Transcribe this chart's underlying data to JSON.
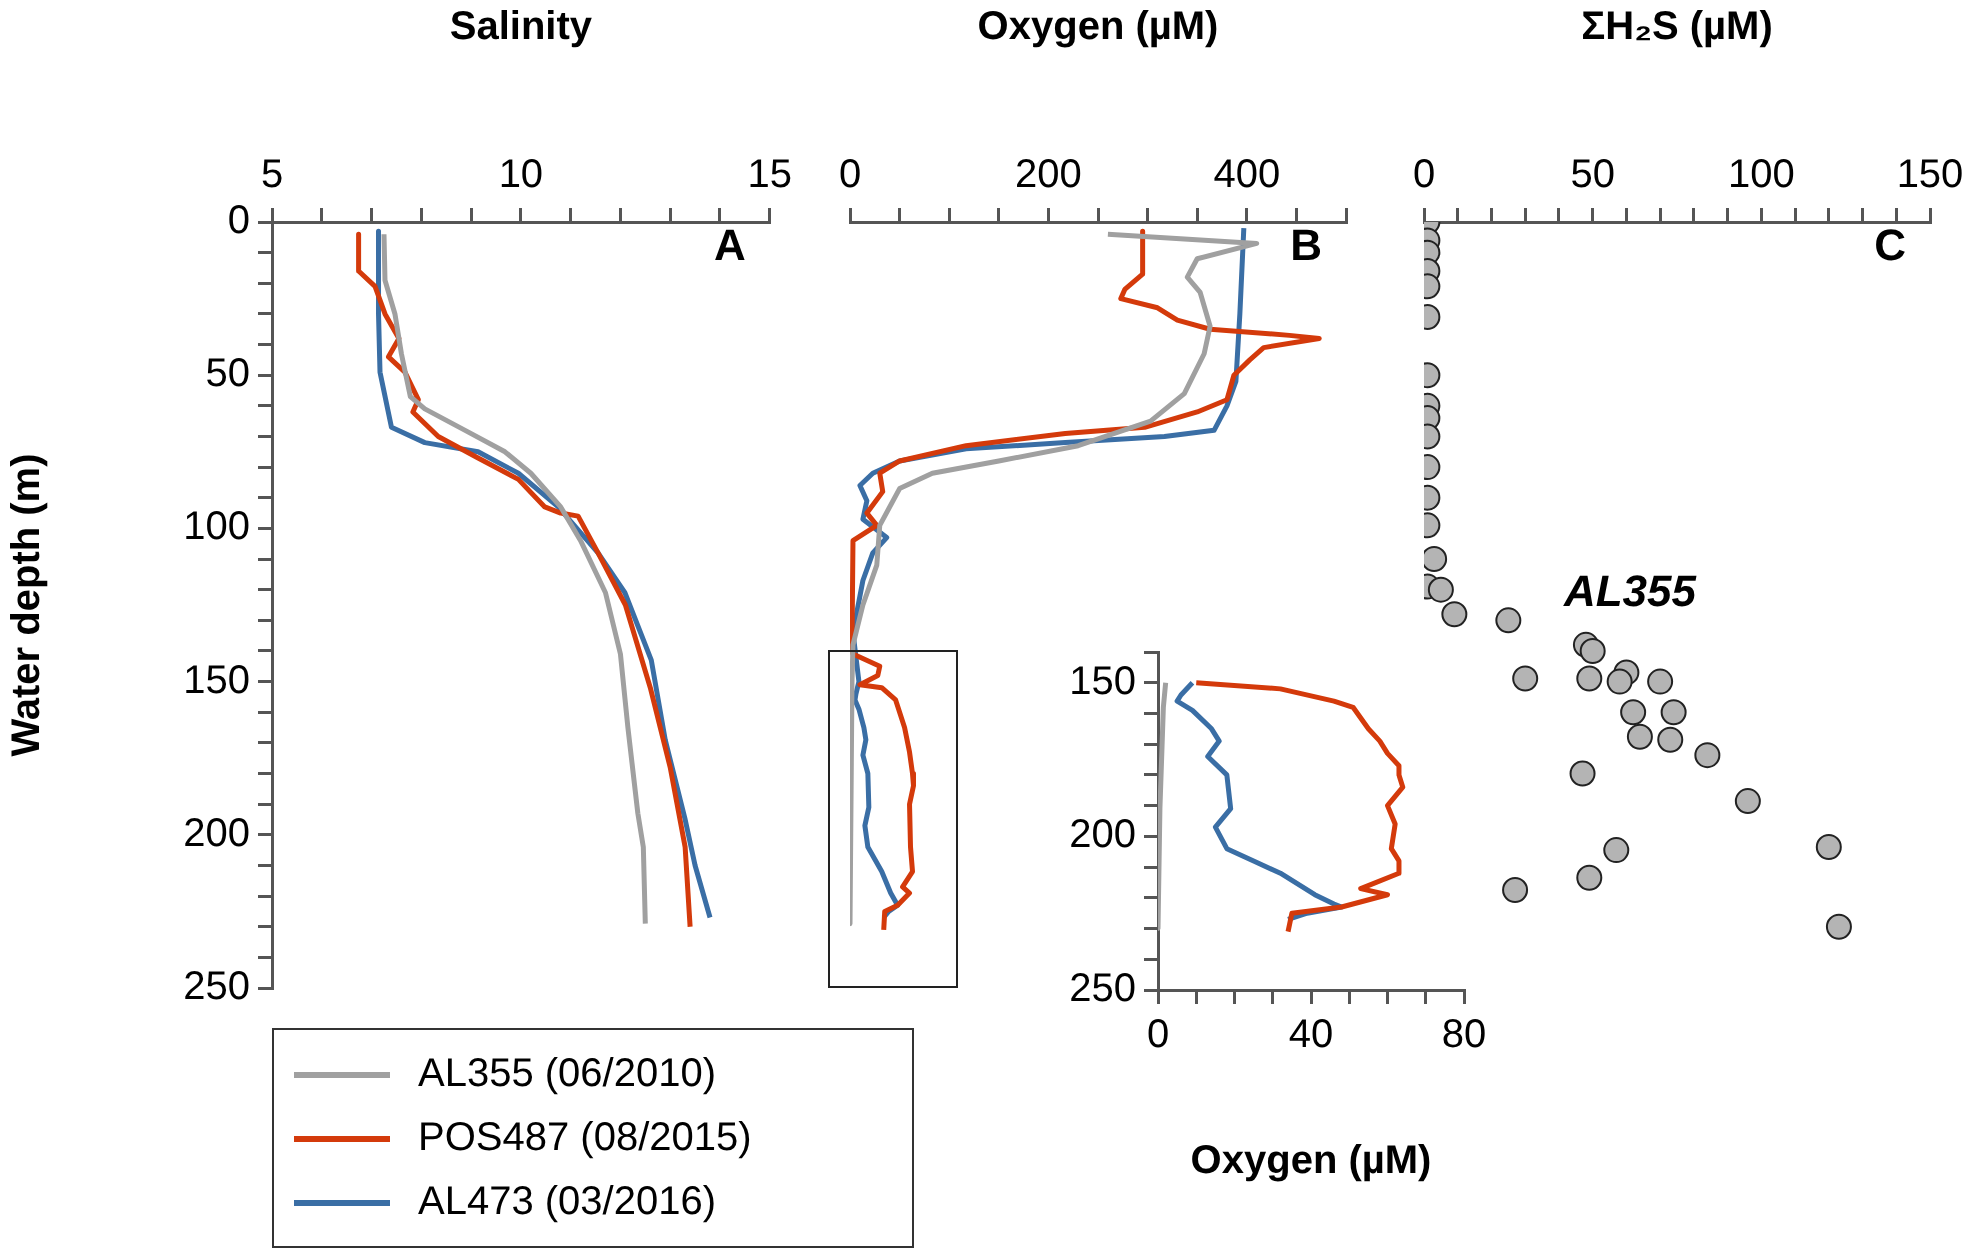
{
  "chart_data": [
    {
      "type": "line",
      "xlabel": "Salinity",
      "ylabel": "Water depth (m)",
      "annotations": [
        "A"
      ],
      "legend": "bottom left",
      "xlim": [
        5,
        15
      ],
      "xticks": [
        5,
        {
          "value": 6,
          "label": null
        },
        {
          "value": 7,
          "label": null
        },
        {
          "value": 8,
          "label": null
        },
        {
          "value": 9,
          "label": null
        },
        10,
        {
          "value": 11,
          "label": null
        },
        {
          "value": 12,
          "label": null
        },
        {
          "value": 13,
          "label": null
        },
        {
          "value": 14,
          "label": null
        },
        15
      ],
      "ylim": [
        250,
        0
      ],
      "yticks": [
        0,
        {
          "value": 10,
          "label": null
        },
        {
          "value": 20,
          "label": null
        },
        {
          "value": 30,
          "label": null
        },
        {
          "value": 40,
          "label": null
        },
        50,
        {
          "value": 60,
          "label": null
        },
        {
          "value": 70,
          "label": null
        },
        {
          "value": 80,
          "label": null
        },
        {
          "value": 90,
          "label": null
        },
        100,
        {
          "value": 110,
          "label": null
        },
        {
          "value": 120,
          "label": null
        },
        {
          "value": 130,
          "label": null
        },
        {
          "value": 140,
          "label": null
        },
        150,
        {
          "value": 160,
          "label": null
        },
        {
          "value": 170,
          "label": null
        },
        {
          "value": 180,
          "label": null
        },
        {
          "value": 190,
          "label": null
        },
        200,
        {
          "value": 210,
          "label": null
        },
        {
          "value": 220,
          "label": null
        },
        {
          "value": 230,
          "label": null
        },
        {
          "value": 240,
          "label": null
        },
        250
      ],
      "series": [
        {
          "name": "AL355 (06/2010)",
          "color": "#a0a0a0",
          "x": [
            7.25,
            7.27,
            7.47,
            7.6,
            7.78,
            8.07,
            8.88,
            9.68,
            10.2,
            10.8,
            11.2,
            11.7,
            12.0,
            12.15,
            12.35,
            12.46,
            12.5
          ],
          "values": [
            4,
            19,
            30,
            43,
            57,
            61,
            68,
            75,
            82,
            93,
            104,
            121,
            141,
            165,
            193,
            204,
            229
          ]
        },
        {
          "name": "POS487 (08/2015)",
          "color": "#d43a0b",
          "x": [
            6.74,
            6.74,
            7.07,
            7.27,
            7.55,
            7.34,
            7.67,
            7.94,
            7.83,
            8.34,
            9.14,
            9.95,
            10.48,
            10.8,
            11.15,
            11.55,
            12.1,
            12.6,
            13.0,
            13.3,
            13.4
          ],
          "values": [
            4,
            16,
            21,
            30,
            38,
            44,
            49,
            58,
            62,
            70,
            77,
            84,
            93,
            95,
            96,
            108,
            125,
            152,
            178,
            204,
            230
          ]
        },
        {
          "name": "AL473 (03/2016)",
          "color": "#3a6ea5",
          "x": [
            7.14,
            7.14,
            7.17,
            7.4,
            8.07,
            9.14,
            9.95,
            10.75,
            11.55,
            12.09,
            12.62,
            12.9,
            13.3,
            13.5,
            13.8
          ],
          "values": [
            3,
            30,
            49,
            67,
            72,
            75,
            82,
            93,
            108,
            121,
            143,
            169,
            195,
            210,
            227
          ]
        }
      ]
    },
    {
      "type": "line",
      "xlabel": "Oxygen (µM)",
      "annotations": [
        "B"
      ],
      "tick_labels": "x",
      "ylim": [
        250,
        0
      ],
      "xlim": [
        0,
        500
      ],
      "xticks": [
        0,
        {
          "value": 50,
          "label": null
        },
        {
          "value": 100,
          "label": null
        },
        {
          "value": 150,
          "label": null
        },
        200,
        {
          "value": 250,
          "label": null
        },
        {
          "value": 300,
          "label": null
        },
        {
          "value": 350,
          "label": null
        },
        400,
        {
          "value": 450,
          "label": null
        },
        {
          "value": 500,
          "label": null
        }
      ],
      "series": [
        {
          "color": "#a0a0a0",
          "x": [
            260,
            410,
            350,
            340,
            353,
            363,
            357,
            337,
            303,
            230,
            150,
            83,
            50,
            30,
            27,
            13,
            3,
            2,
            0
          ],
          "values": [
            4,
            7,
            12,
            18,
            23,
            34,
            43,
            56,
            65,
            73,
            78,
            82,
            87,
            99,
            112,
            125,
            138,
            150,
            229
          ]
        },
        {
          "color": "#d43a0b",
          "x": [
            295,
            295,
            277,
            273,
            310,
            330,
            363,
            443,
            473,
            417,
            403,
            387,
            380,
            350,
            297,
            217,
            117,
            50,
            30,
            33,
            17,
            27,
            3,
            2,
            3,
            30,
            28,
            10,
            32,
            46,
            55,
            60,
            63,
            64,
            60,
            61,
            63,
            53,
            60,
            48,
            35,
            34
          ],
          "values": [
            3,
            17,
            22,
            25,
            28,
            32,
            35,
            37,
            38,
            41,
            45,
            50,
            58,
            62,
            67,
            69,
            73,
            78,
            82,
            88,
            95,
            99,
            104,
            138,
            141,
            145,
            148,
            151,
            152,
            156,
            165,
            173,
            180,
            184,
            190,
            204,
            212,
            217,
            219,
            223,
            225,
            231
          ]
        },
        {
          "color": "#3a6ea5",
          "x": [
            397,
            393,
            389,
            380,
            367,
            317,
            217,
            117,
            50,
            23,
            10,
            17,
            13,
            37,
            23,
            13,
            3,
            9,
            6,
            5,
            9,
            14,
            16,
            13,
            18,
            19,
            15,
            18,
            25,
            32,
            41,
            48,
            39,
            34
          ],
          "values": [
            2,
            30,
            52,
            60,
            68,
            70,
            72,
            74,
            78,
            82,
            86,
            91,
            97,
            103,
            108,
            117,
            134,
            150,
            154,
            156,
            159,
            165,
            169,
            174,
            180,
            191,
            197,
            204,
            208,
            212,
            219,
            223,
            225,
            227
          ]
        }
      ]
    },
    {
      "type": "scatter",
      "xlabel": "ΣH₂S (µM)",
      "annotations": [
        "C",
        "AL355"
      ],
      "tick_labels": "x",
      "ylim": [
        250,
        0
      ],
      "marker": "circle",
      "color": "#b4b4b4",
      "xlim": [
        0,
        150
      ],
      "xticks": [
        0,
        {
          "value": 10,
          "label": null
        },
        {
          "value": 20,
          "label": null
        },
        {
          "value": 30,
          "label": null
        },
        {
          "value": 40,
          "label": null
        },
        50,
        {
          "value": 60,
          "label": null
        },
        {
          "value": 70,
          "label": null
        },
        {
          "value": 80,
          "label": null
        },
        {
          "value": 90,
          "label": null
        },
        100,
        {
          "value": 110,
          "label": null
        },
        {
          "value": 120,
          "label": null
        },
        {
          "value": 130,
          "label": null
        },
        {
          "value": 140,
          "label": null
        },
        150
      ],
      "x": [
        1,
        1,
        1,
        1,
        1,
        1,
        1,
        1,
        1,
        1,
        1,
        1,
        1,
        3,
        1,
        5,
        9,
        25,
        48,
        50,
        30,
        49,
        60,
        58,
        70,
        62,
        74,
        64,
        73,
        84,
        47,
        96,
        57,
        120,
        49,
        27,
        123
      ],
      "values": [
        0,
        6,
        10,
        16,
        21,
        31,
        50,
        60,
        64,
        70,
        80,
        90,
        99,
        110,
        119,
        120,
        128,
        130,
        138,
        140,
        149,
        149,
        147,
        150,
        150,
        160,
        160,
        168,
        169,
        174,
        180,
        189,
        205,
        204,
        214,
        218,
        230
      ]
    },
    {
      "type": "line",
      "xlabel": "Oxygen (µM)",
      "xlim": [
        0,
        80
      ],
      "xticks": [
        0,
        {
          "value": 10,
          "label": null
        },
        {
          "value": 20,
          "label": null
        },
        {
          "value": 30,
          "label": null
        },
        40,
        {
          "value": 50,
          "label": null
        },
        {
          "value": 60,
          "label": null
        },
        {
          "value": 70,
          "label": null
        },
        80
      ],
      "ylim": [
        250,
        140
      ],
      "yticks": [
        {
          "value": 140,
          "label": null
        },
        150,
        {
          "value": 160,
          "label": null
        },
        {
          "value": 170,
          "label": null
        },
        {
          "value": 180,
          "label": null
        },
        {
          "value": 190,
          "label": null
        },
        200,
        {
          "value": 210,
          "label": null
        },
        {
          "value": 220,
          "label": null
        },
        {
          "value": 230,
          "label": null
        },
        {
          "value": 240,
          "label": null
        },
        250
      ],
      "series": [
        {
          "color": "#a0a0a0",
          "x": [
            2,
            1.4,
            0.5,
            0,
            0
          ],
          "values": [
            150,
            158,
            191,
            223,
            230
          ]
        },
        {
          "color": "#d43a0b",
          "x": [
            10,
            32,
            46,
            51,
            55,
            58,
            60,
            63,
            63,
            64,
            60,
            62,
            61,
            63,
            63,
            53,
            60,
            48,
            35,
            34
          ],
          "values": [
            150,
            152,
            156,
            158,
            165,
            169,
            173,
            177,
            180,
            184,
            190,
            196,
            204,
            208,
            212,
            217,
            219,
            223,
            225,
            231
          ]
        },
        {
          "color": "#3a6ea5",
          "x": [
            9,
            6,
            5,
            9,
            14,
            16,
            13,
            18,
            19,
            15,
            18,
            25,
            32,
            41,
            46,
            48,
            39,
            34
          ],
          "values": [
            150,
            154,
            156,
            159,
            165,
            169,
            174,
            180,
            191,
            197,
            204,
            208,
            212,
            219,
            222,
            223,
            225,
            227
          ]
        }
      ]
    }
  ]
}
